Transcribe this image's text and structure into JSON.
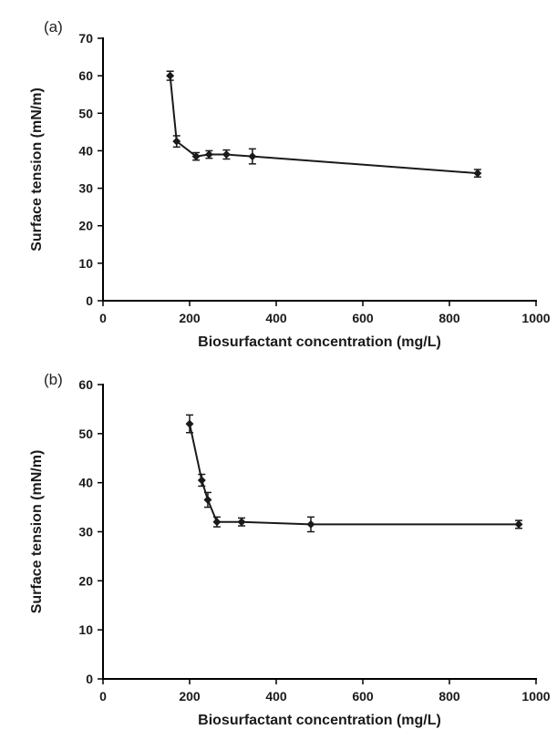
{
  "page": {
    "background": "#ffffff",
    "axis_color": "#000000",
    "series_color": "#1a1a1a",
    "text_color": "#1a1a1a"
  },
  "panels": [
    {
      "label": "(a)"
    },
    {
      "label": "(b)"
    }
  ],
  "chart_data": [
    {
      "type": "line",
      "title": "",
      "xlabel": "Biosurfactant concentration (mg/L)",
      "ylabel": "Surface tension (mN/m)",
      "xlim": [
        0,
        1000
      ],
      "ylim": [
        0,
        70
      ],
      "xticks": [
        0,
        200,
        400,
        600,
        800,
        1000
      ],
      "yticks": [
        0,
        10,
        20,
        30,
        40,
        50,
        60,
        70
      ],
      "grid": false,
      "legend": "none",
      "marker": "diamond",
      "error_bars": true,
      "series": [
        {
          "name": "surface tension",
          "x": [
            155,
            170,
            215,
            245,
            285,
            345,
            865
          ],
          "y": [
            60,
            42.5,
            38.5,
            39,
            39,
            38.5,
            34
          ],
          "yerr": [
            1.2,
            1.5,
            1.0,
            1.0,
            1.2,
            2.0,
            1.0
          ]
        }
      ]
    },
    {
      "type": "line",
      "title": "",
      "xlabel": "Biosurfactant concentration (mg/L)",
      "ylabel": "Surface tension (mN/m)",
      "xlim": [
        0,
        1000
      ],
      "ylim": [
        0,
        60
      ],
      "xticks": [
        0,
        200,
        400,
        600,
        800,
        1000
      ],
      "yticks": [
        0,
        10,
        20,
        30,
        40,
        50,
        60
      ],
      "grid": false,
      "legend": "none",
      "marker": "diamond",
      "error_bars": true,
      "series": [
        {
          "name": "surface tension",
          "x": [
            200,
            228,
            242,
            263,
            320,
            480,
            960
          ],
          "y": [
            52,
            40.5,
            36.5,
            32,
            32,
            31.5,
            31.5
          ],
          "yerr": [
            1.8,
            1.2,
            1.5,
            1.0,
            0.8,
            1.5,
            0.8
          ]
        }
      ]
    }
  ]
}
